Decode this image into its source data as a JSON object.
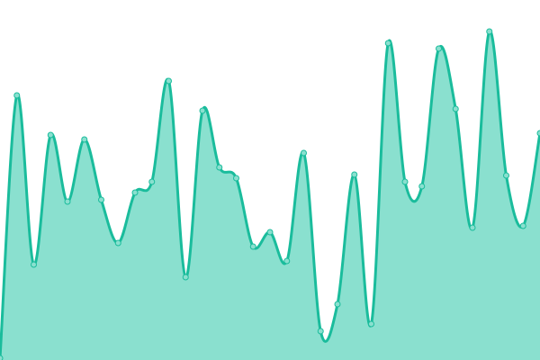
{
  "chart_data": {
    "type": "area",
    "title": "",
    "xlabel": "",
    "ylabel": "",
    "x": [
      0,
      1,
      2,
      3,
      4,
      5,
      6,
      7,
      8,
      9,
      10,
      11,
      12,
      13,
      14,
      15,
      16,
      17,
      18,
      19,
      20,
      21,
      22,
      23,
      24,
      25,
      26,
      27,
      28,
      29,
      30,
      31,
      32
    ],
    "values": [
      2,
      294,
      106,
      250,
      176,
      245,
      178,
      130,
      186,
      198,
      310,
      92,
      277,
      214,
      202,
      126,
      142,
      110,
      230,
      32,
      62,
      206,
      40,
      352,
      198,
      193,
      346,
      279,
      147,
      365,
      205,
      149,
      252
    ],
    "ylim": [
      0,
      400
    ],
    "xlim": [
      0,
      32
    ],
    "grid": false,
    "axes_visible": false,
    "smooth": true,
    "markers": true,
    "colors": {
      "line": "#1abc9c",
      "fill": "#8ae0cf",
      "marker_fill": "#8ae0cf",
      "marker_stroke": "#1abc9c"
    }
  }
}
